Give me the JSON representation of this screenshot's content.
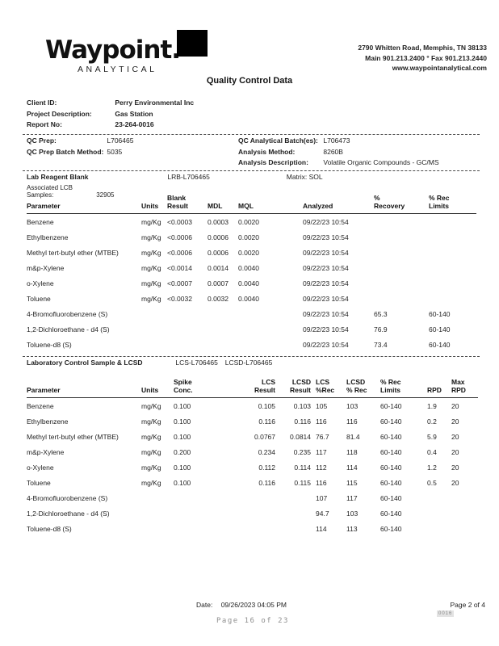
{
  "page": {
    "title": "Quality Control Data"
  },
  "header": {
    "logo": "Waypoint.",
    "logo_sub": "ANALYTICAL",
    "address1": "2790 Whitten Road, Memphis, TN 38133",
    "address2": "Main 901.213.2400 ° Fax 901.213.2440",
    "address3": "www.waypointanalytical.com"
  },
  "info": {
    "rows": [
      {
        "label": "Client ID:",
        "value": "Perry Environmental Inc"
      },
      {
        "label": "Project Description:",
        "value": "Gas Station"
      },
      {
        "label": "Report No:",
        "value": "23-264-0016"
      }
    ]
  },
  "qc": {
    "left": [
      {
        "label": "QC Prep:",
        "value": "L706465"
      },
      {
        "label": "QC Prep Batch Method:",
        "value": "5035"
      }
    ],
    "right": [
      {
        "label": "QC Analytical Batch(es):",
        "value": "L706473"
      },
      {
        "label": "Analysis Method:",
        "value": "8260B"
      },
      {
        "label": "Analysis Description:",
        "value": "Volatile Organic Compounds - GC/MS"
      }
    ]
  },
  "blank": {
    "title": "Lab Reagent Blank",
    "id": "LRB-L706465",
    "matrix": "Matrix: SOL",
    "associated_label": "Associated LCB Samples:",
    "associated_value": "32905",
    "headers": {
      "param": "Parameter",
      "units": "Units",
      "result": "Blank\nResult",
      "mdl": "MDL",
      "mql": "MQL",
      "analyzed": "Analyzed",
      "recovery": "%\nRecovery",
      "limits": "% Rec\nLimits"
    },
    "rows": [
      {
        "param": "Benzene",
        "units": "mg/Kg",
        "result": "<0.0003",
        "mdl": "0.0003",
        "mql": "0.0020",
        "analyzed": "09/22/23 10:54",
        "recovery": "",
        "limits": ""
      },
      {
        "param": "Ethylbenzene",
        "units": "mg/Kg",
        "result": "<0.0006",
        "mdl": "0.0006",
        "mql": "0.0020",
        "analyzed": "09/22/23 10:54",
        "recovery": "",
        "limits": ""
      },
      {
        "param": "Methyl tert-butyl ether (MTBE)",
        "units": "mg/Kg",
        "result": "<0.0006",
        "mdl": "0.0006",
        "mql": "0.0020",
        "analyzed": "09/22/23 10:54",
        "recovery": "",
        "limits": ""
      },
      {
        "param": "m&p-Xylene",
        "units": "mg/Kg",
        "result": "<0.0014",
        "mdl": "0.0014",
        "mql": "0.0040",
        "analyzed": "09/22/23 10:54",
        "recovery": "",
        "limits": ""
      },
      {
        "param": "o-Xylene",
        "units": "mg/Kg",
        "result": "<0.0007",
        "mdl": "0.0007",
        "mql": "0.0040",
        "analyzed": "09/22/23 10:54",
        "recovery": "",
        "limits": ""
      },
      {
        "param": "Toluene",
        "units": "mg/Kg",
        "result": "<0.0032",
        "mdl": "0.0032",
        "mql": "0.0040",
        "analyzed": "09/22/23 10:54",
        "recovery": "",
        "limits": ""
      },
      {
        "param": "4-Bromofluorobenzene (S)",
        "units": "",
        "result": "",
        "mdl": "",
        "mql": "",
        "analyzed": "09/22/23 10:54",
        "recovery": "65.3",
        "limits": "60-140"
      },
      {
        "param": "1,2-Dichloroethane - d4 (S)",
        "units": "",
        "result": "",
        "mdl": "",
        "mql": "",
        "analyzed": "09/22/23 10:54",
        "recovery": "76.9",
        "limits": "60-140"
      },
      {
        "param": "Toluene-d8 (S)",
        "units": "",
        "result": "",
        "mdl": "",
        "mql": "",
        "analyzed": "09/22/23 10:54",
        "recovery": "73.4",
        "limits": "60-140"
      }
    ]
  },
  "lcs": {
    "title": "Laboratory Control Sample & LCSD",
    "lcs_id": "LCS-L706465",
    "lcsd_id": "LCSD-L706465",
    "headers": {
      "param": "Parameter",
      "units": "Units",
      "spike": "Spike\nConc.",
      "lcsres": "LCS\nResult",
      "lcsdres": "LCSD\nResult",
      "lcsrec": "LCS\n%Rec",
      "lcsdrec": "LCSD\n% Rec",
      "limits": "% Rec\nLimits",
      "rpd": "RPD",
      "maxrpd": "Max\nRPD"
    },
    "rows": [
      {
        "param": "Benzene",
        "units": "mg/Kg",
        "spike": "0.100",
        "lcsres": "0.105",
        "lcsdres": "0.103",
        "lcsrec": "105",
        "lcsdrec": "103",
        "limits": "60-140",
        "rpd": "1.9",
        "maxrpd": "20"
      },
      {
        "param": "Ethylbenzene",
        "units": "mg/Kg",
        "spike": "0.100",
        "lcsres": "0.116",
        "lcsdres": "0.116",
        "lcsrec": "116",
        "lcsdrec": "116",
        "limits": "60-140",
        "rpd": "0.2",
        "maxrpd": "20"
      },
      {
        "param": "Methyl tert-butyl ether (MTBE)",
        "units": "mg/Kg",
        "spike": "0.100",
        "lcsres": "0.0767",
        "lcsdres": "0.0814",
        "lcsrec": "76.7",
        "lcsdrec": "81.4",
        "limits": "60-140",
        "rpd": "5.9",
        "maxrpd": "20"
      },
      {
        "param": "m&p-Xylene",
        "units": "mg/Kg",
        "spike": "0.200",
        "lcsres": "0.234",
        "lcsdres": "0.235",
        "lcsrec": "117",
        "lcsdrec": "118",
        "limits": "60-140",
        "rpd": "0.4",
        "maxrpd": "20"
      },
      {
        "param": "o-Xylene",
        "units": "mg/Kg",
        "spike": "0.100",
        "lcsres": "0.112",
        "lcsdres": "0.114",
        "lcsrec": "112",
        "lcsdrec": "114",
        "limits": "60-140",
        "rpd": "1.2",
        "maxrpd": "20"
      },
      {
        "param": "Toluene",
        "units": "mg/Kg",
        "spike": "0.100",
        "lcsres": "0.116",
        "lcsdres": "0.115",
        "lcsrec": "116",
        "lcsdrec": "115",
        "limits": "60-140",
        "rpd": "0.5",
        "maxrpd": "20"
      },
      {
        "param": "4-Bromofluorobenzene (S)",
        "units": "",
        "spike": "",
        "lcsres": "",
        "lcsdres": "",
        "lcsrec": "107",
        "lcsdrec": "117",
        "limits": "60-140",
        "rpd": "",
        "maxrpd": ""
      },
      {
        "param": "1,2-Dichloroethane - d4 (S)",
        "units": "",
        "spike": "",
        "lcsres": "",
        "lcsdres": "",
        "lcsrec": "94.7",
        "lcsdrec": "103",
        "limits": "60-140",
        "rpd": "",
        "maxrpd": ""
      },
      {
        "param": "Toluene-d8 (S)",
        "units": "",
        "spike": "",
        "lcsres": "",
        "lcsdres": "",
        "lcsrec": "114",
        "lcsdrec": "113",
        "limits": "60-140",
        "rpd": "",
        "maxrpd": ""
      }
    ]
  },
  "footer": {
    "date_label": "Date:",
    "date": "09/26/2023 04:05 PM",
    "page": "Page 2 of 4",
    "overlay_page": "Page 16 of 23",
    "stamp": "0016"
  }
}
